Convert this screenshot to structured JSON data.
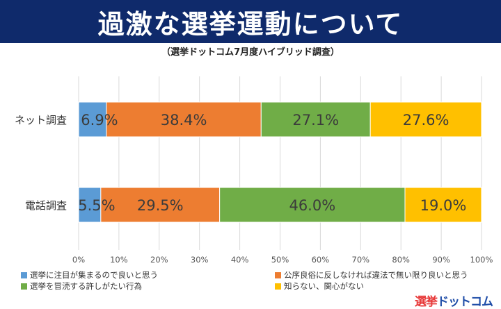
{
  "title": "過激な選挙運動について",
  "subtitle": "（選挙ドットコム7月度ハイブリッド調査）",
  "logo": {
    "part1": "選挙",
    "part2": "ドットコム"
  },
  "colors": [
    "#5b9bd5",
    "#ed7d31",
    "#70ad47",
    "#ffc000"
  ],
  "chart_data": {
    "type": "bar",
    "orientation": "horizontal-stacked-100",
    "categories": [
      "ネット調査",
      "電話調査"
    ],
    "series": [
      {
        "name": "選挙に注目が集まるので良いと思う",
        "values": [
          6.9,
          5.5
        ]
      },
      {
        "name": "公序良俗に反しなければ違法で無い限り良いと思う",
        "values": [
          38.4,
          29.5
        ]
      },
      {
        "name": "選挙を冒涜する許しがたい行為",
        "values": [
          27.1,
          46.0
        ]
      },
      {
        "name": "知らない、関心がない",
        "values": [
          27.6,
          19.0
        ]
      }
    ],
    "data_labels": [
      [
        "6.9%",
        "38.4%",
        "27.1%",
        "27.6%"
      ],
      [
        "5.5%",
        "29.5%",
        "46.0%",
        "19.0%"
      ]
    ],
    "xlim": [
      0,
      100
    ],
    "x_ticks": [
      "0%",
      "10%",
      "20%",
      "30%",
      "40%",
      "50%",
      "60%",
      "70%",
      "80%",
      "90%",
      "100%"
    ],
    "legend_position": "bottom",
    "grid": true
  }
}
